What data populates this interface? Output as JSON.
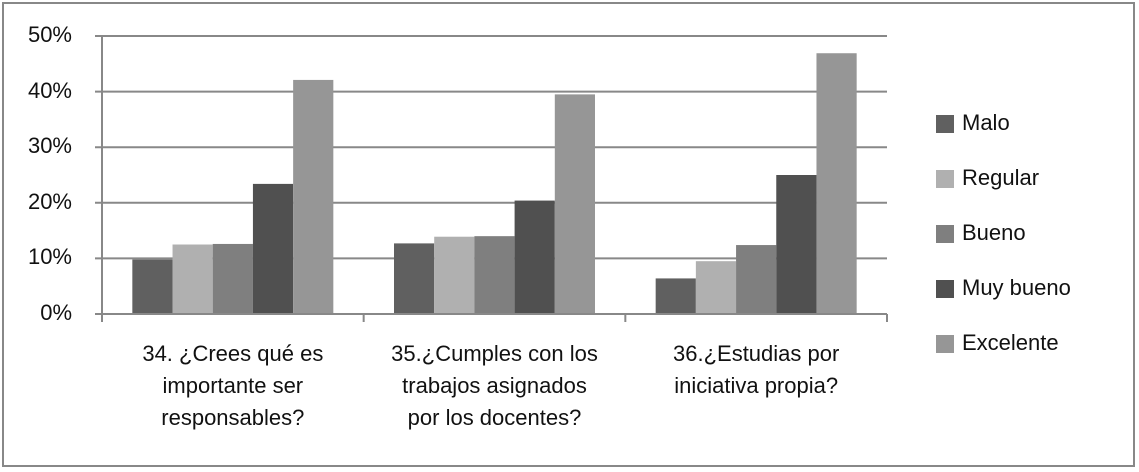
{
  "chart_data": {
    "type": "bar",
    "title": "",
    "xlabel": "",
    "ylabel": "",
    "ylim": [
      0,
      50
    ],
    "y_ticks": [
      "0%",
      "10%",
      "20%",
      "30%",
      "40%",
      "50%"
    ],
    "y_tick_values": [
      0,
      10,
      20,
      30,
      40,
      50
    ],
    "grid": true,
    "legend_position": "right",
    "categories": [
      "34. ¿Crees qué es\nimportante ser\nresponsables?",
      "35.¿Cumples con los\ntrabajos asignados\npor los docentes?",
      "36.¿Estudias por\niniciativa propia?"
    ],
    "series": [
      {
        "name": "Malo",
        "color": "#606060",
        "values": [
          9.8,
          12.7,
          6.4
        ]
      },
      {
        "name": "Regular",
        "color": "#B0B0B0",
        "values": [
          12.5,
          13.9,
          9.5
        ]
      },
      {
        "name": "Bueno",
        "color": "#7F7F7F",
        "values": [
          12.6,
          14.0,
          12.4
        ]
      },
      {
        "name": "Muy bueno",
        "color": "#505050",
        "values": [
          23.4,
          20.4,
          25.0
        ]
      },
      {
        "name": "Excelente",
        "color": "#969696",
        "values": [
          42.1,
          39.5,
          46.9
        ]
      }
    ]
  },
  "colors": {
    "gridline": "#888888",
    "frame": "#888888",
    "text": "#111111"
  }
}
